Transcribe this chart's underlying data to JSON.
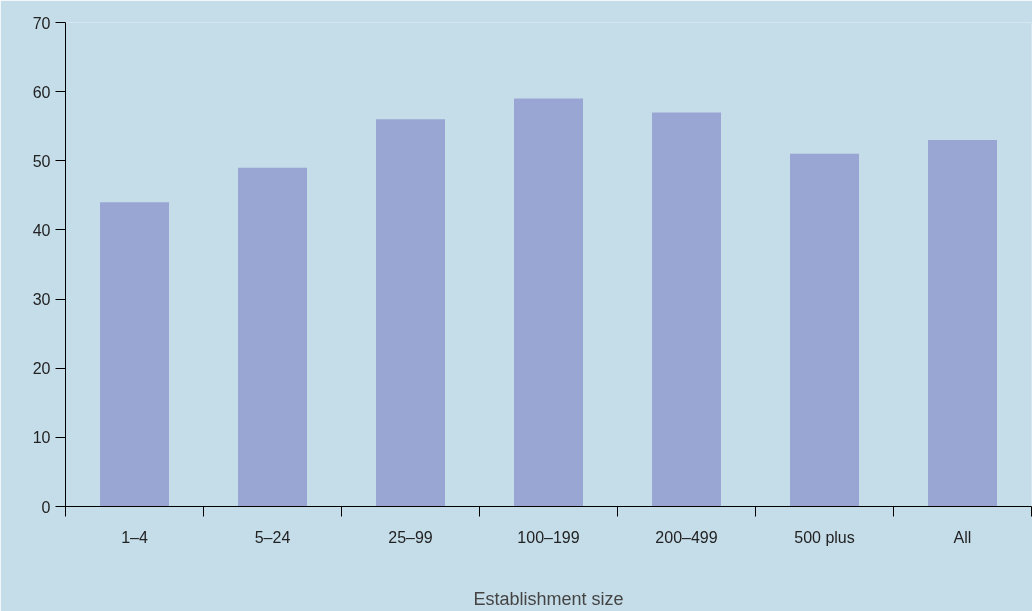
{
  "chart_data": {
    "type": "bar",
    "xlabel": "Establishment size",
    "categories": [
      "1–4",
      "5–24",
      "25–99",
      "100–199",
      "200–499",
      "500 plus",
      "All"
    ],
    "values": [
      44,
      49,
      56,
      59,
      57,
      51,
      53
    ],
    "color": "#99a5d3",
    "ylim": [
      0,
      70
    ],
    "yticks": [
      0,
      10,
      20,
      30,
      40,
      50,
      60,
      70
    ],
    "grid": false
  }
}
